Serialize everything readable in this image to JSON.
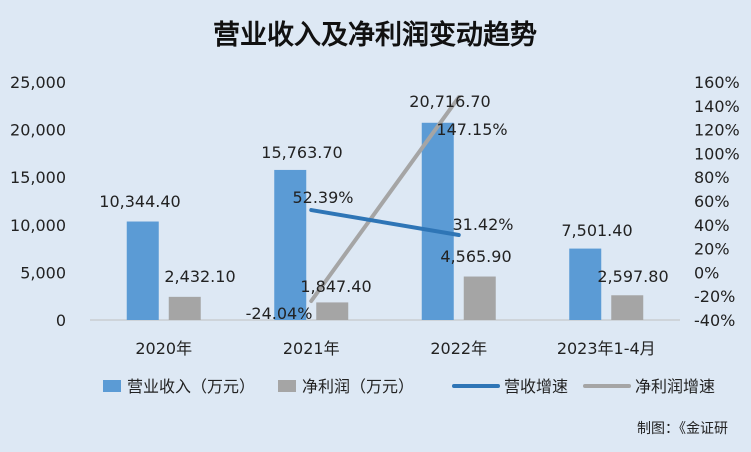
{
  "chart_data": {
    "type": "bar",
    "title": "营业收入及净利润变动趋势",
    "categories": [
      "2020年",
      "2021年",
      "2022年",
      "2023年1-4月"
    ],
    "series": [
      {
        "name": "营业收入（万元）",
        "kind": "bar",
        "axis": "left",
        "color": "#5b9bd5",
        "values": [
          10344.4,
          15763.7,
          20716.7,
          7501.4
        ],
        "labels": [
          "10,344.40",
          "15,763.70",
          "20,716.70",
          "7,501.40"
        ]
      },
      {
        "name": "净利润（万元）",
        "kind": "bar",
        "axis": "left",
        "color": "#a5a5a5",
        "values": [
          2432.1,
          1847.4,
          4565.9,
          2597.8
        ],
        "labels": [
          "2,432.10",
          "1,847.40",
          "4,565.90",
          "2,597.80"
        ]
      },
      {
        "name": "营收增速",
        "kind": "line",
        "axis": "right",
        "color": "#2e75b6",
        "values": [
          null,
          52.39,
          31.42,
          null
        ],
        "labels": [
          "",
          "52.39%",
          "31.42%",
          ""
        ]
      },
      {
        "name": "净利润增速",
        "kind": "line",
        "axis": "right",
        "color": "#a5a5a5",
        "values": [
          null,
          -24.04,
          147.15,
          null
        ],
        "labels": [
          "",
          "-24.04%",
          "147.15%",
          ""
        ]
      }
    ],
    "y_left": {
      "range": [
        0,
        25000
      ],
      "ticks": [
        "0",
        "5,000",
        "10,000",
        "15,000",
        "20,000",
        "25,000"
      ]
    },
    "y_right": {
      "range": [
        -40,
        160
      ],
      "ticks": [
        "-40%",
        "-20%",
        "0%",
        "20%",
        "40%",
        "60%",
        "80%",
        "100%",
        "120%",
        "140%",
        "160%"
      ]
    },
    "grid": false,
    "legend_position": "bottom"
  },
  "source": "制图：《金证研"
}
